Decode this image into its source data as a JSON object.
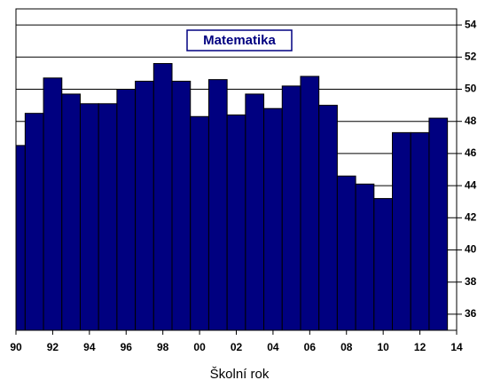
{
  "chart_data": {
    "type": "bar",
    "title": "Matematika",
    "x_label": "Školní rok",
    "x": [
      90,
      91,
      92,
      93,
      94,
      95,
      96,
      97,
      98,
      99,
      100,
      101,
      102,
      103,
      104,
      105,
      106,
      107,
      108,
      109,
      110,
      111,
      112,
      113
    ],
    "values": [
      46.5,
      48.5,
      50.7,
      49.7,
      49.1,
      49.1,
      50.0,
      50.5,
      51.6,
      50.5,
      48.3,
      50.6,
      48.4,
      49.7,
      48.8,
      50.2,
      50.8,
      49.0,
      44.6,
      44.1,
      43.2,
      47.3,
      47.3,
      48.2
    ],
    "color": "#000080",
    "xlim": [
      90,
      114
    ],
    "xticks": [
      90,
      92,
      94,
      96,
      98,
      {
        "value": 100,
        "label": "00"
      },
      {
        "value": 102,
        "label": "02"
      },
      {
        "value": 104,
        "label": "04"
      },
      {
        "value": 106,
        "label": "06"
      },
      {
        "value": 108,
        "label": "08"
      },
      {
        "value": 110,
        "label": "10"
      },
      {
        "value": 112,
        "label": "12"
      },
      {
        "value": 114,
        "label": "14"
      }
    ],
    "ylim": [
      35,
      55
    ],
    "yticks": [
      36,
      38,
      40,
      42,
      44,
      46,
      48,
      50,
      52,
      54
    ],
    "y_axis_side": "right",
    "grid": true
  }
}
